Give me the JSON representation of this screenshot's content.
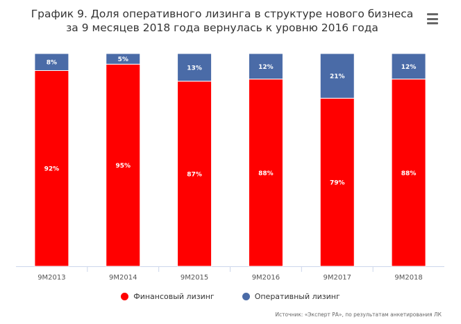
{
  "menu": {
    "icon": "hamburger-menu-icon"
  },
  "chart_data": {
    "type": "bar",
    "stacked": true,
    "title": "График 9. Доля оперативного лизинга в структуре нового бизнеса за 9 месяцев 2018 года вернулась к уровню 2016 года",
    "categories": [
      "9М2013",
      "9М2014",
      "9М2015",
      "9М2016",
      "9М2017",
      "9М2018"
    ],
    "series": [
      {
        "name": "Финансовый лизинг",
        "color": "#ff0000",
        "values": [
          92,
          95,
          87,
          88,
          79,
          88
        ],
        "labels": [
          "92%",
          "95%",
          "87%",
          "88%",
          "79%",
          "88%"
        ]
      },
      {
        "name": "Оперативный лизинг",
        "color": "#4a6ba7",
        "values": [
          8,
          5,
          13,
          12,
          21,
          12
        ],
        "labels": [
          "8%",
          "5%",
          "13%",
          "12%",
          "21%",
          "12%"
        ]
      }
    ],
    "ylim": [
      0,
      100
    ],
    "legend_position": "bottom",
    "source": "Источник: «Эксперт РА», по результатам анкетирования ЛК"
  }
}
